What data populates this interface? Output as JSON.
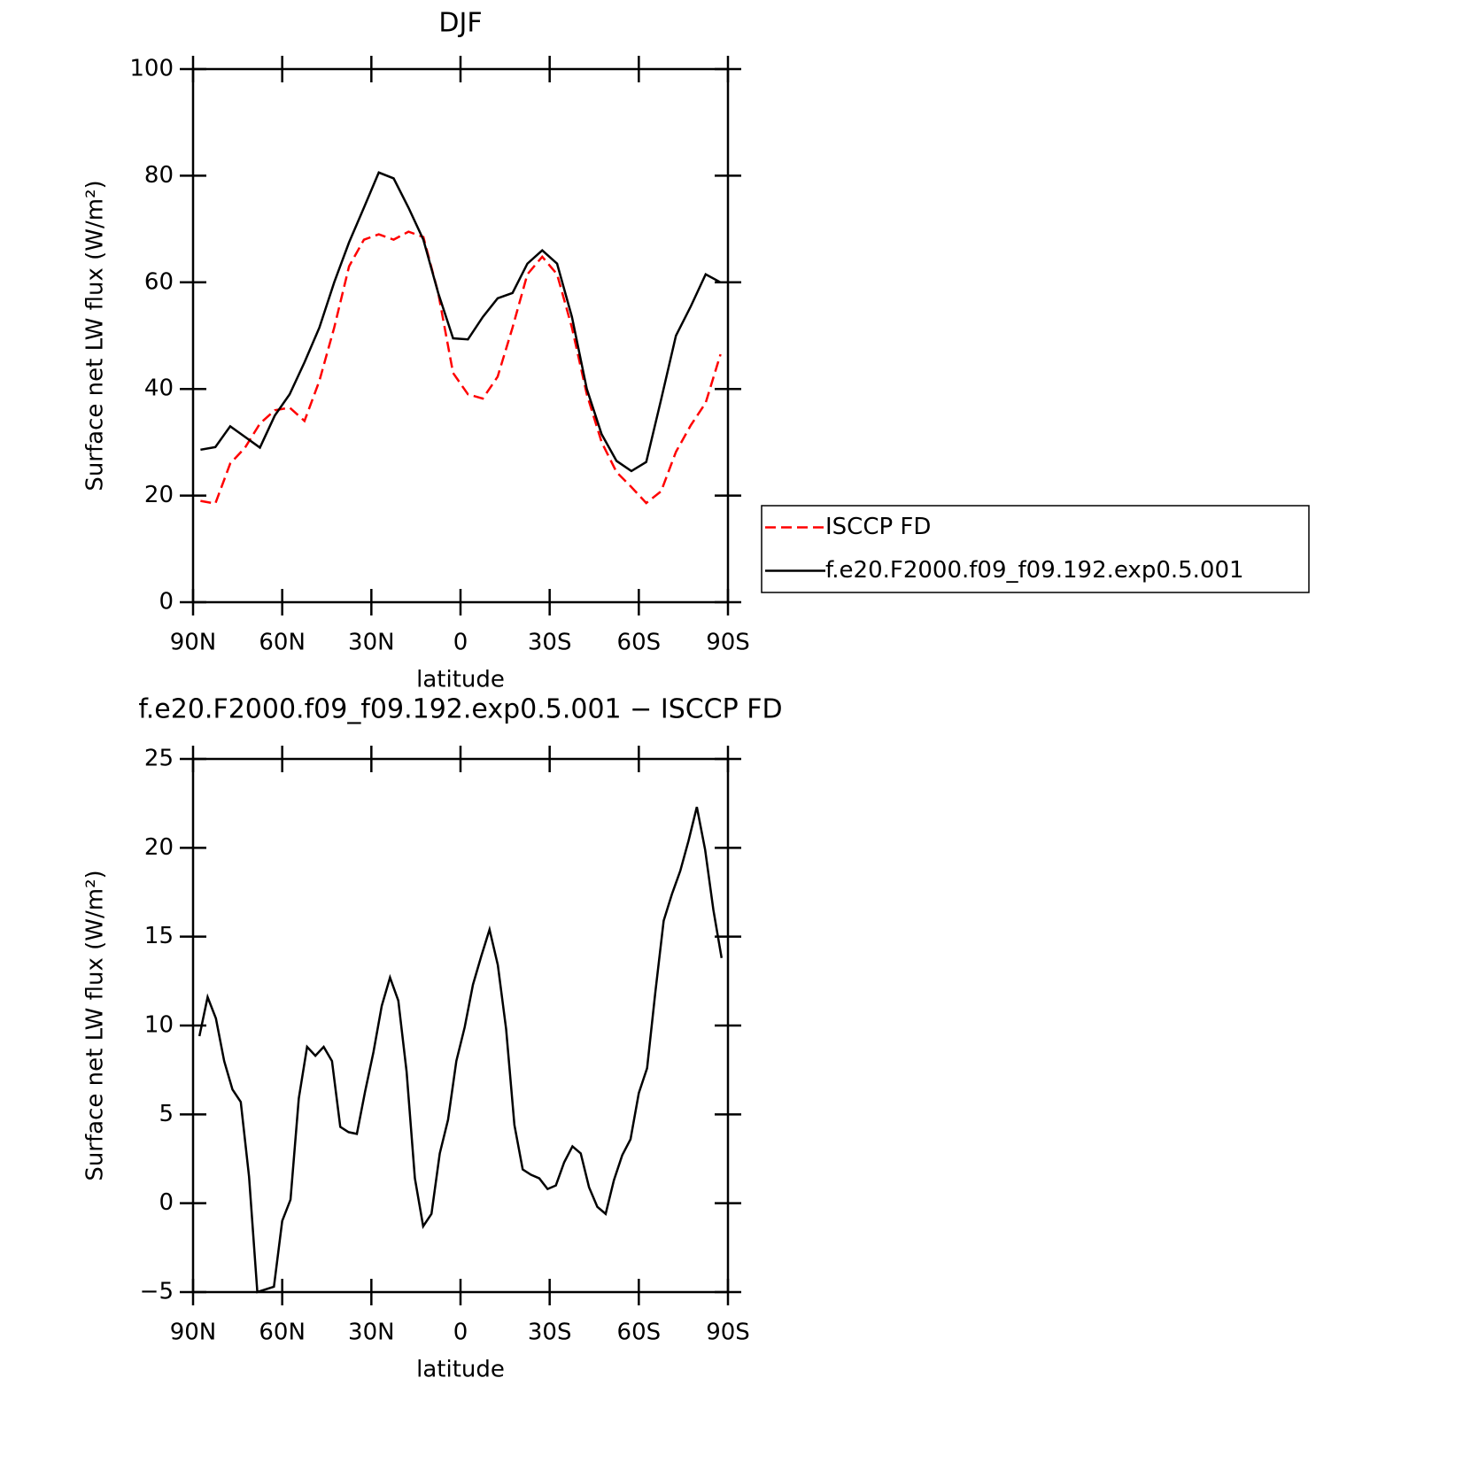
{
  "chart_data": [
    {
      "type": "line",
      "title": "DJF",
      "xlabel": "latitude",
      "ylabel": "Surface net LW flux (W/m²)",
      "x": [
        87.5,
        82.5,
        77.5,
        72.5,
        67.5,
        62.5,
        57.5,
        52.5,
        47.5,
        42.5,
        37.5,
        32.5,
        27.5,
        22.5,
        17.5,
        12.5,
        7.5,
        2.5,
        -2.5,
        -7.5,
        -12.5,
        -17.5,
        -22.5,
        -27.5,
        -32.5,
        -37.5,
        -42.5,
        -47.5,
        -52.5,
        -57.5,
        -62.5,
        -67.5,
        -72.5,
        -77.5,
        -82.5,
        -87.5
      ],
      "series": [
        {
          "name": "ISCCP FD",
          "color": "#ff0000",
          "line_style": "dashed",
          "values": [
            19,
            18.5,
            26,
            29,
            33.5,
            36,
            36.5,
            34,
            41.5,
            51.5,
            63,
            68,
            69,
            68,
            69.5,
            68.5,
            58,
            43,
            39,
            38.2,
            42.3,
            51.5,
            61.5,
            64.8,
            61.5,
            51.5,
            39,
            30,
            24.4,
            21.6,
            18.6,
            20.8,
            28.2,
            33.2,
            37.4,
            46.5
          ]
        },
        {
          "name": "f.e20.F2000.f09_f09.192.exp0.5.001",
          "color": "#000000",
          "line_style": "solid",
          "values": [
            28.6,
            29.1,
            33,
            31,
            29,
            35,
            39,
            45,
            51.5,
            60,
            67.5,
            74,
            80.6,
            79.5,
            74,
            68,
            58,
            49.5,
            49.3,
            53.5,
            57,
            58,
            63.5,
            66,
            63.5,
            53.5,
            40,
            31.5,
            26.5,
            24.6,
            26.3,
            38,
            50,
            55.5,
            61.5,
            60
          ]
        }
      ],
      "xlim": [
        90,
        -90
      ],
      "xticks": [
        {
          "value": 90,
          "label": "90N"
        },
        {
          "value": 60,
          "label": "60N"
        },
        {
          "value": 30,
          "label": "30N"
        },
        0,
        {
          "value": -30,
          "label": "30S"
        },
        {
          "value": -60,
          "label": "60S"
        },
        {
          "value": -90,
          "label": "90S"
        }
      ],
      "ylim": [
        0,
        100
      ],
      "yticks": [
        0,
        20,
        40,
        60,
        80,
        100
      ],
      "legend": "right"
    },
    {
      "type": "line",
      "title": "f.e20.F2000.f09_f09.192.exp0.5.001 − ISCCP FD",
      "xlabel": "latitude",
      "ylabel": "Surface net LW flux (W/m²)",
      "x": [
        87.86,
        85.1,
        82.31,
        79.53,
        76.74,
        73.95,
        71.16,
        68.37,
        65.58,
        62.79,
        60,
        57.21,
        54.42,
        51.63,
        48.84,
        46.04,
        43.25,
        40.46,
        37.67,
        34.88,
        32.09,
        29.3,
        26.51,
        23.72,
        20.93,
        18.14,
        15.35,
        12.56,
        9.77,
        6.98,
        4.19,
        1.4,
        -1.4,
        -4.19,
        -6.98,
        -9.77,
        -12.56,
        -15.35,
        -18.14,
        -20.93,
        -23.72,
        -26.51,
        -29.3,
        -32.09,
        -34.88,
        -37.67,
        -40.46,
        -43.25,
        -46.04,
        -48.84,
        -51.63,
        -54.42,
        -57.21,
        -60,
        -62.79,
        -65.58,
        -68.37,
        -71.16,
        -73.95,
        -76.74,
        -79.53,
        -82.31,
        -85.1,
        -87.86
      ],
      "series": [
        {
          "color": "#000000",
          "line_style": "solid",
          "values": [
            9.4,
            11.6,
            10.4,
            8,
            6.4,
            5.7,
            1.5,
            -5,
            -4.85,
            -4.7,
            -1,
            0.2,
            5.9,
            8.8,
            8.3,
            8.8,
            8,
            4.3,
            4,
            3.9,
            6.3,
            8.5,
            11.1,
            12.7,
            11.4,
            7.4,
            1.4,
            -1.3,
            -0.6,
            2.8,
            4.7,
            8,
            9.9,
            12.3,
            13.9,
            15.4,
            13.4,
            9.8,
            4.4,
            1.9,
            1.6,
            1.4,
            0.8,
            1,
            2.3,
            3.2,
            2.8,
            0.9,
            -0.2,
            -0.6,
            1.3,
            2.7,
            3.6,
            6.2,
            7.6,
            11.9,
            15.9,
            17.4,
            18.7,
            20.4,
            22.3,
            19.9,
            16.5,
            13.8
          ]
        }
      ],
      "xlim": [
        90,
        -90
      ],
      "xticks": [
        {
          "value": 90,
          "label": "90N"
        },
        {
          "value": 60,
          "label": "60N"
        },
        {
          "value": 30,
          "label": "30N"
        },
        0,
        {
          "value": -30,
          "label": "30S"
        },
        {
          "value": -60,
          "label": "60S"
        },
        {
          "value": -90,
          "label": "90S"
        }
      ],
      "ylim": [
        -5,
        25
      ],
      "yticks": [
        {
          "value": -5,
          "label": "−5"
        },
        0,
        5,
        10,
        15,
        20,
        25
      ]
    }
  ]
}
